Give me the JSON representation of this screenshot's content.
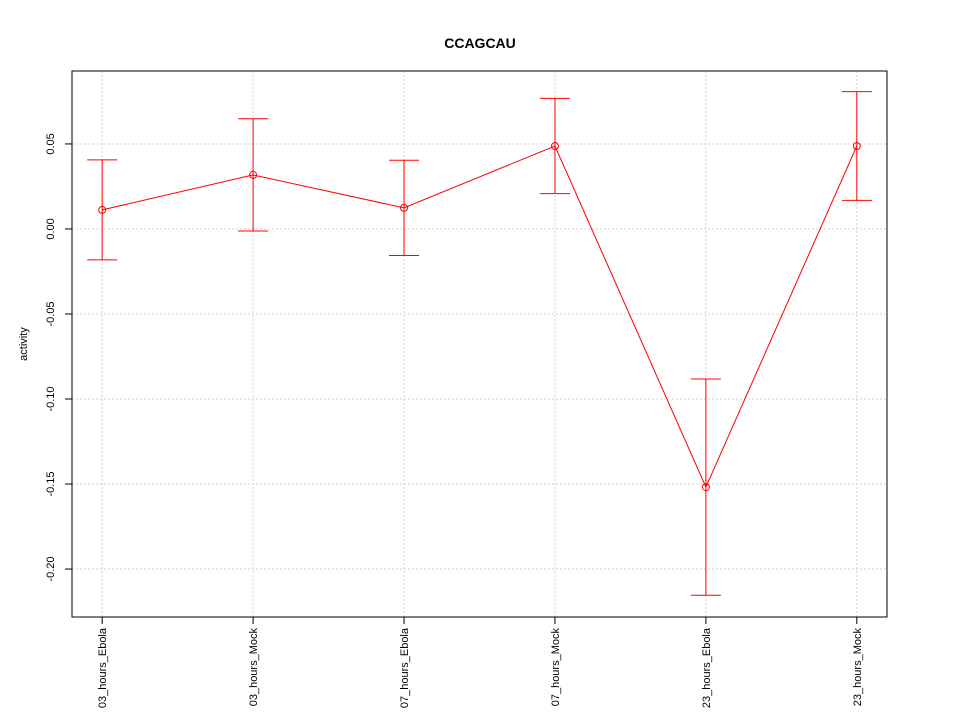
{
  "chart_data": {
    "type": "line",
    "title": "CCAGCAU",
    "y_label": "activity",
    "categories": [
      "03_hours_Ebola",
      "03_hours_Mock",
      "07_hours_Ebola",
      "07_hours_Mock",
      "23_hours_Ebola",
      "23_hours_Mock"
    ],
    "series": [
      {
        "color": "#ff0000",
        "values": [
          0.0112,
          0.0318,
          0.0124,
          0.0488,
          -0.1518,
          0.0488
        ],
        "errors": [
          0.0294,
          0.033,
          0.028,
          0.028,
          0.0636,
          0.032
        ]
      }
    ],
    "ylim": [
      -0.2282,
      0.0929
    ],
    "yticks": [
      {
        "value": -0.2,
        "label": "-0.20"
      },
      -0.15,
      {
        "value": -0.1,
        "label": "-0.10"
      },
      -0.05,
      {
        "value": 0,
        "label": "0.00"
      },
      0.05
    ],
    "grid": true
  }
}
